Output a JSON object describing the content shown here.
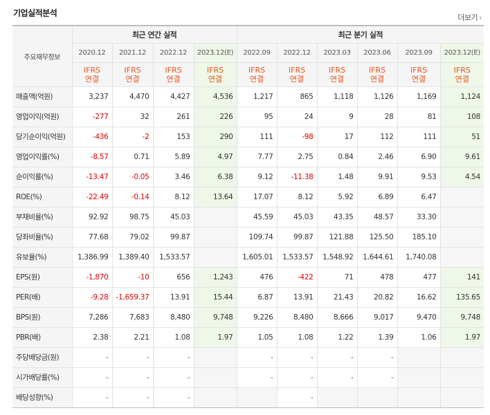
{
  "header": {
    "title": "기업실적분석",
    "more_label": "더보기"
  },
  "table": {
    "row_label_header": "주요재무정보",
    "groups": [
      "최근 연간 실적",
      "최근 분기 실적"
    ],
    "periods": [
      "2020.12",
      "2021.12",
      "2022.12",
      "2023.12(E)",
      "2022.09",
      "2022.12",
      "2023.03",
      "2023.06",
      "2023.09",
      "2023.12(E)"
    ],
    "ifrs": [
      "IFRS",
      "연결"
    ],
    "rows": [
      {
        "label": "매출액(억원)",
        "values": [
          "3,237",
          "4,470",
          "4,427",
          "4,536",
          "1,217",
          "865",
          "1,118",
          "1,126",
          "1,169",
          "1,124"
        ]
      },
      {
        "label": "영업이익(억원)",
        "values": [
          "-277",
          "32",
          "261",
          "226",
          "95",
          "24",
          "9",
          "28",
          "81",
          "108"
        ]
      },
      {
        "label": "당기순이익(억원)",
        "values": [
          "-436",
          "-2",
          "153",
          "290",
          "111",
          "-98",
          "17",
          "112",
          "111",
          "51"
        ]
      },
      {
        "label": "영업이익률(%)",
        "values": [
          "-8.57",
          "0.71",
          "5.89",
          "4.97",
          "7.77",
          "2.75",
          "0.84",
          "2.46",
          "6.90",
          "9.61"
        ]
      },
      {
        "label": "순이익률(%)",
        "values": [
          "-13.47",
          "-0.05",
          "3.46",
          "6.38",
          "9.12",
          "-11.38",
          "1.48",
          "9.91",
          "9.53",
          "4.54"
        ]
      },
      {
        "label": "ROE(%)",
        "values": [
          "-22.49",
          "-0.14",
          "8.12",
          "13.64",
          "17.07",
          "8.12",
          "5.92",
          "6.89",
          "6.47",
          ""
        ]
      },
      {
        "label": "부채비율(%)",
        "values": [
          "92.92",
          "98.75",
          "45.03",
          "",
          "45.59",
          "45.03",
          "43.35",
          "48.57",
          "33.30",
          ""
        ]
      },
      {
        "label": "당좌비율(%)",
        "values": [
          "77.68",
          "79.02",
          "99.87",
          "",
          "109.74",
          "99.87",
          "121.88",
          "125.50",
          "185.10",
          ""
        ]
      },
      {
        "label": "유보율(%)",
        "values": [
          "1,386.99",
          "1,389.40",
          "1,533.57",
          "",
          "1,605.01",
          "1,533.57",
          "1,548.92",
          "1,644.61",
          "1,740.08",
          ""
        ]
      },
      {
        "label": "EPS(원)",
        "values": [
          "-1,870",
          "-10",
          "656",
          "1,243",
          "476",
          "-422",
          "71",
          "478",
          "477",
          "141"
        ]
      },
      {
        "label": "PER(배)",
        "values": [
          "-9.28",
          "-1,659.37",
          "13.91",
          "15.44",
          "6.87",
          "13.91",
          "21.43",
          "20.82",
          "16.62",
          "135.65"
        ]
      },
      {
        "label": "BPS(원)",
        "values": [
          "7,286",
          "7,683",
          "8,480",
          "9,748",
          "9,226",
          "8,480",
          "8,666",
          "9,017",
          "9,470",
          "9,748"
        ]
      },
      {
        "label": "PBR(배)",
        "values": [
          "2.38",
          "2.21",
          "1.08",
          "1.97",
          "1.05",
          "1.08",
          "1.22",
          "1.39",
          "1.06",
          "1.97"
        ]
      },
      {
        "label": "주당배당금(원)",
        "values": [
          "-",
          "-",
          "-",
          "",
          "-",
          "-",
          "-",
          "-",
          "",
          ""
        ]
      },
      {
        "label": "시가배당률(%)",
        "values": [
          "-",
          "-",
          "-",
          "",
          "-",
          "-",
          "-",
          "-",
          "",
          ""
        ]
      },
      {
        "label": "배당성향(%)",
        "values": [
          "-",
          "-",
          "-",
          "",
          "",
          "-",
          "",
          "",
          "",
          ""
        ]
      }
    ]
  },
  "colors": {
    "negative": "#dd0000",
    "ifrs": "#e8541e",
    "estimate_bg": "#eef7e8"
  }
}
